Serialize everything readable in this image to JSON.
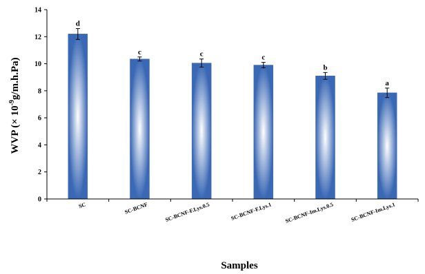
{
  "chart_data": {
    "type": "bar",
    "title": "",
    "xlabel": "Samples",
    "ylabel": "WVP (× 10",
    "ylabel_exponent": "-9",
    "ylabel_unit": "g/m.h.Pa)",
    "categories": [
      "SC",
      "SC-BCNF",
      "SC-BCNF-F.Lys.0.5",
      "SC-BCNF-F.Lys.1",
      "SC-BCNF-Im.Lys.0.5",
      "SC-BCNF-Im.Lys.1"
    ],
    "values": [
      12.2,
      10.35,
      10.05,
      9.9,
      9.1,
      7.85
    ],
    "errors": [
      0.4,
      0.15,
      0.3,
      0.2,
      0.25,
      0.35
    ],
    "significance_letters": [
      "d",
      "c",
      "c",
      "c",
      "b",
      "a"
    ],
    "ylim": [
      0,
      14
    ],
    "yticks": [
      "0",
      "2",
      "4",
      "6",
      "8",
      "10",
      "12",
      "14"
    ],
    "grid": false,
    "legend": "none",
    "colors": {
      "bar_edge": "#3a68b5",
      "bar_highlight": "#ffffff",
      "axis": "#000000"
    }
  }
}
